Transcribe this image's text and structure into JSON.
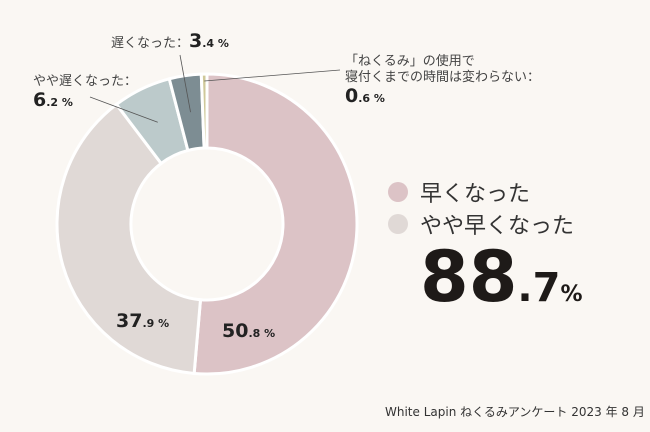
{
  "chart_data": {
    "type": "pie",
    "donut": true,
    "categories": [
      "早くなった",
      "やや早くなった",
      "やや遅くなった",
      "遅くなった",
      "「ねくるみ」の使用で寝付くまでの時間は変わらない"
    ],
    "values": [
      50.8,
      37.9,
      6.2,
      3.4,
      0.6
    ],
    "colors": [
      "#dcc3c6",
      "#e0d9d6",
      "#bccacb",
      "#7d8d93",
      "#cfc89a"
    ],
    "data_labels": [
      {
        "int": "50",
        "dec": ".8",
        "unit": " %"
      },
      {
        "int": "37",
        "dec": ".9",
        "unit": " %"
      },
      {
        "int": "6",
        "dec": ".2",
        "unit": " %"
      },
      {
        "int": "3",
        "dec": ".4",
        "unit": " %"
      },
      {
        "int": "0",
        "dec": ".6",
        "unit": " %"
      }
    ],
    "callouts": {
      "slow": "遅くなった：",
      "slightly_slow": "やや遅くなった：",
      "unchanged_line1": "「ねくるみ」の使用で",
      "unchanged_line2": "寝付くまでの時間は変わらない："
    },
    "legend": [
      {
        "label": "早くなった",
        "color": "#dcc3c6"
      },
      {
        "label": "やや早くなった",
        "color": "#e0d9d6"
      }
    ],
    "total": {
      "int": "88",
      "dec": ".7",
      "unit": "%"
    },
    "source": "White Lapin ねくるみアンケート 2023 年 8 月"
  }
}
